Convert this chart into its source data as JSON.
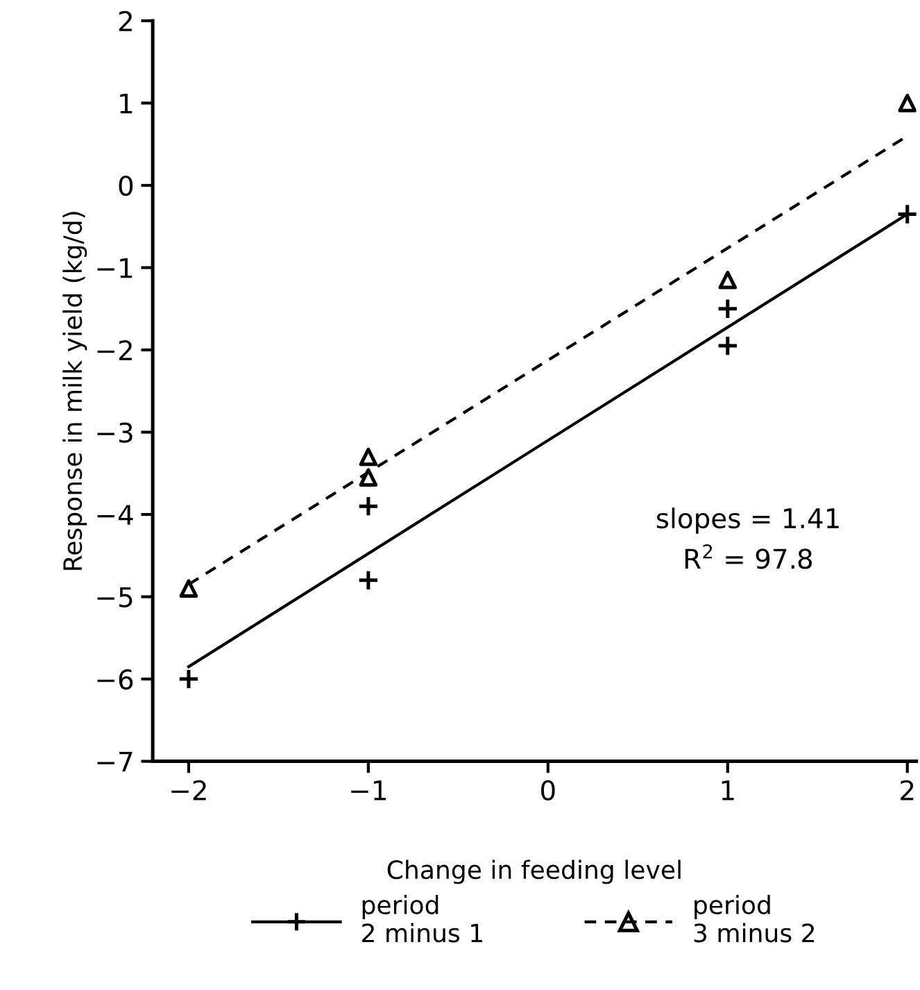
{
  "chart_data": {
    "type": "scatter",
    "xlabel": "Change in feeding level",
    "ylabel": "Response in milk yield (kg/d)",
    "xlim": [
      -2.2,
      2.05
    ],
    "ylim": [
      -7,
      2
    ],
    "xticks": [
      -2,
      -1,
      0,
      1,
      2
    ],
    "yticks": [
      -7,
      -6,
      -5,
      -4,
      -3,
      -2,
      -1,
      0,
      1,
      2
    ],
    "grid": false,
    "legend": "bottom",
    "annotations": [
      "slopes = 1.41",
      "R$^{2}$ = 97.8"
    ],
    "series": [
      {
        "name": "period\n2 minus 1",
        "color": "#000000",
        "marker": "cross",
        "x": [
          -2,
          -1,
          -1,
          1,
          1,
          2
        ],
        "values": [
          -6.0,
          -3.9,
          -4.8,
          -1.5,
          -1.95,
          -0.35
        ]
      },
      {
        "type": "line",
        "color": "#000000",
        "line_style": "solid",
        "x": [
          -2,
          2
        ],
        "values": [
          -5.85,
          -0.35
        ]
      },
      {
        "name": "period\n3 minus 2",
        "color": "#000000",
        "marker": "triangle",
        "x": [
          -2,
          -1,
          -1,
          1,
          2
        ],
        "values": [
          -4.9,
          -3.3,
          -3.55,
          -1.15,
          1.0
        ]
      },
      {
        "type": "line",
        "color": "#000000",
        "line_style": "dashed",
        "x": [
          -2,
          2
        ],
        "values": [
          -4.85,
          0.6
        ]
      }
    ]
  }
}
